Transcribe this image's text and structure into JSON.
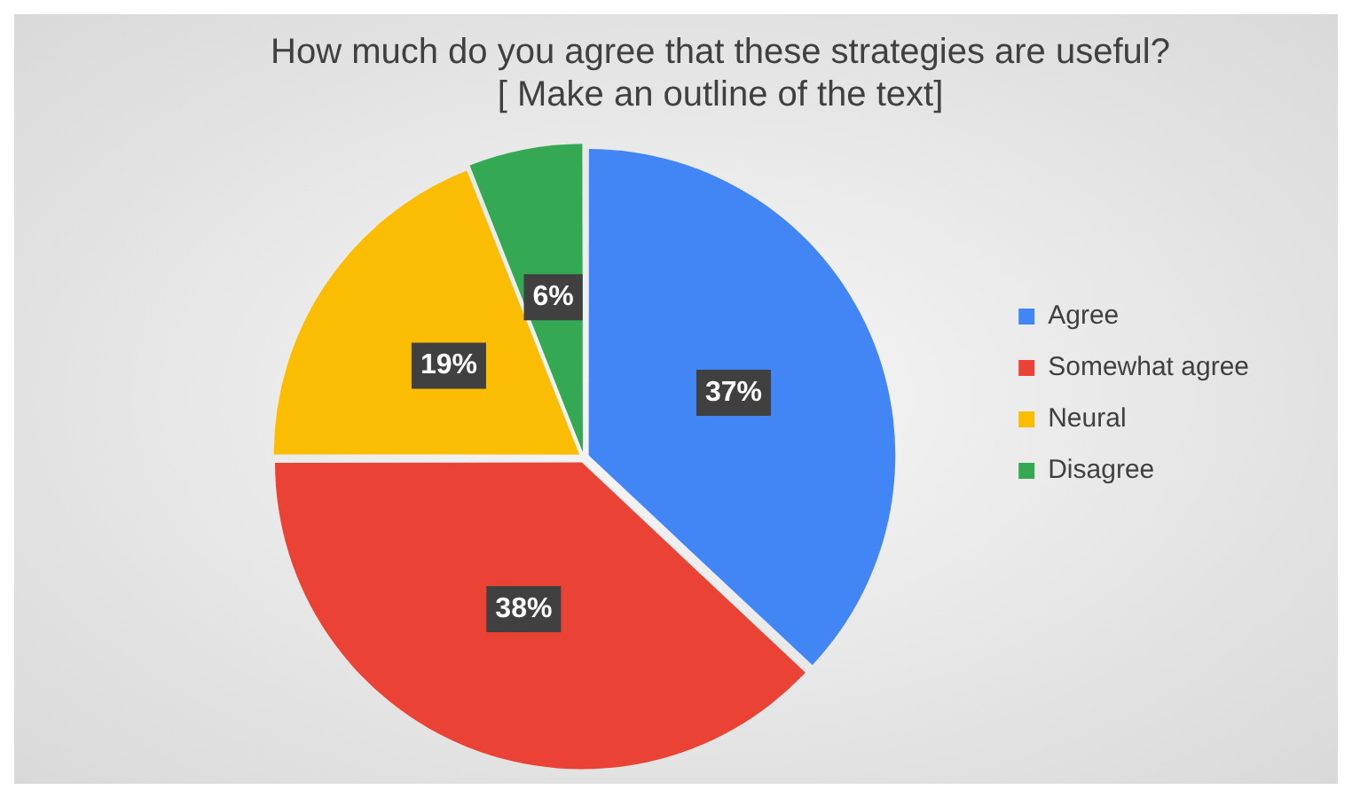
{
  "chart_data": {
    "type": "pie",
    "title": "How much do you agree that these strategies are useful? [ Make an outline of the text]",
    "categories": [
      "Agree",
      "Somewhat agree",
      "Neural",
      "Disagree"
    ],
    "values": [
      37,
      38,
      19,
      6
    ],
    "colors": [
      "#4285f4",
      "#ea4335",
      "#fbbc04",
      "#34a853"
    ],
    "value_labels": [
      "37%",
      "38%",
      "19%",
      "6%"
    ],
    "legend": "right"
  }
}
